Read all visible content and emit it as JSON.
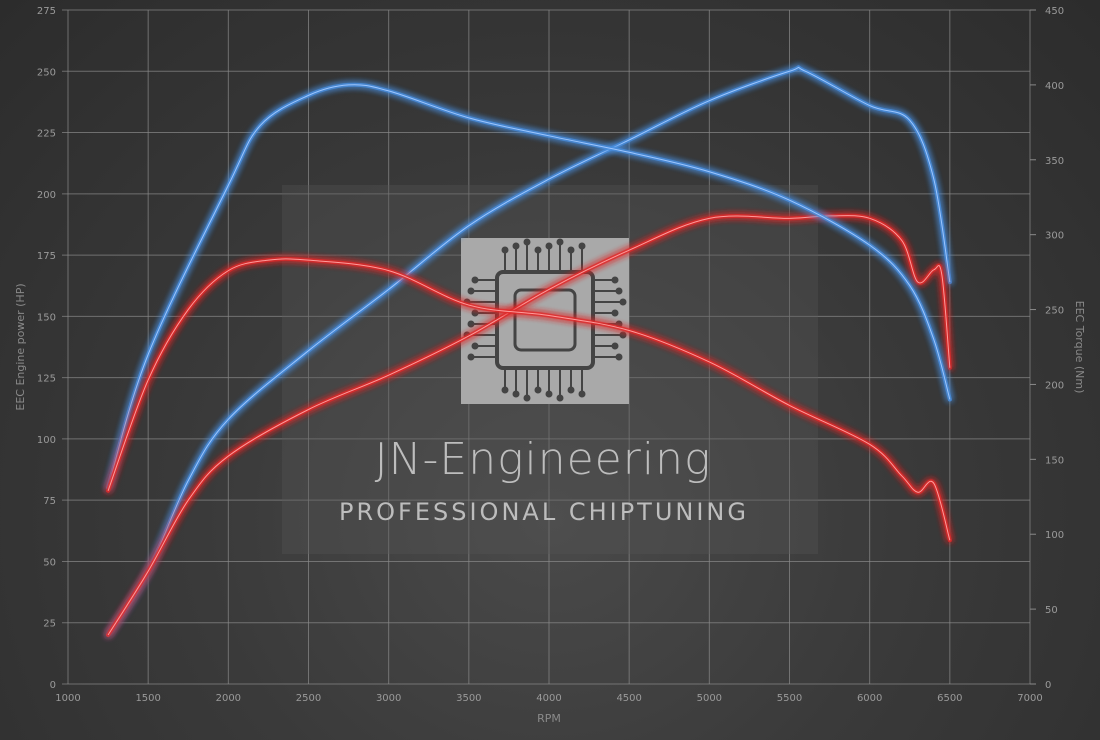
{
  "chart_data": {
    "type": "line",
    "title": "",
    "xlabel": "RPM",
    "ylabel": "EEC Engine power (HP)",
    "y2label": "EEC Torque (Nm)",
    "xlim": [
      1000,
      7000
    ],
    "ylim": [
      0,
      275
    ],
    "y2lim": [
      0,
      450
    ],
    "xticks": [
      1000,
      1500,
      2000,
      2500,
      3000,
      3500,
      4000,
      4500,
      5000,
      5500,
      6000,
      6500,
      7000
    ],
    "yticks": [
      0,
      25,
      50,
      75,
      100,
      125,
      150,
      175,
      200,
      225,
      250,
      275
    ],
    "y2ticks": [
      0,
      50,
      100,
      150,
      200,
      250,
      300,
      350,
      400,
      450
    ],
    "grid": true,
    "series": [
      {
        "axis": "left",
        "color": "#4a8fe0",
        "x": [
          1250,
          1500,
          1750,
          2000,
          2500,
          3000,
          3500,
          4000,
          4500,
          5000,
          5500,
          5600,
          6000,
          6250,
          6400,
          6500
        ],
        "values": [
          20,
          46,
          83,
          108,
          136,
          161,
          187,
          206,
          222,
          238,
          250,
          250,
          236,
          230,
          206,
          164
        ]
      },
      {
        "axis": "left",
        "color": "#e02a2a",
        "x": [
          1250,
          1500,
          1750,
          2000,
          2500,
          3000,
          3500,
          4000,
          4500,
          5000,
          5500,
          5750,
          6000,
          6200,
          6300,
          6400,
          6450,
          6500
        ],
        "values": [
          20,
          46,
          75,
          93,
          112,
          126,
          142,
          161,
          177,
          190,
          190,
          191,
          190,
          181,
          164,
          169,
          167,
          129
        ]
      },
      {
        "axis": "right",
        "color": "#4a8fe0",
        "x": [
          1250,
          1500,
          2000,
          2200,
          2500,
          2750,
          3000,
          3500,
          4000,
          4500,
          5000,
          5500,
          6000,
          6250,
          6400,
          6500
        ],
        "values": [
          131,
          220,
          333,
          373,
          393,
          400,
          396,
          378,
          366,
          355,
          342,
          323,
          293,
          266,
          230,
          190
        ]
      },
      {
        "axis": "right",
        "color": "#e02a2a",
        "x": [
          1250,
          1500,
          1750,
          2000,
          2250,
          2500,
          3000,
          3500,
          4000,
          4500,
          5000,
          5500,
          6000,
          6200,
          6300,
          6400,
          6500
        ],
        "values": [
          129,
          203,
          250,
          276,
          283,
          283,
          276,
          253,
          246,
          236,
          215,
          186,
          160,
          139,
          128,
          134,
          96
        ]
      }
    ]
  },
  "watermark": {
    "title": "JN-Engineering",
    "subtitle": "PROFESSIONAL CHIPTUNING"
  }
}
